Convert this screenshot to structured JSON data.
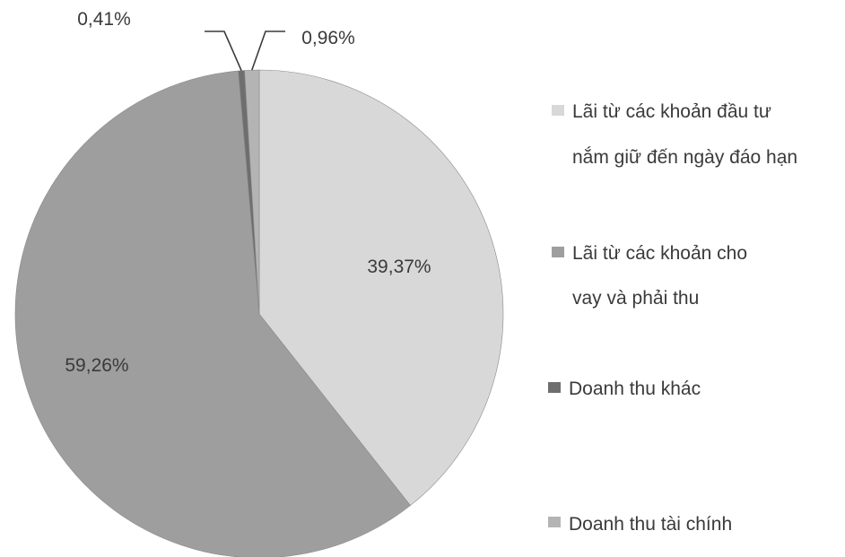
{
  "chart_data": {
    "type": "pie",
    "title": "",
    "categories": [
      "Lãi từ các khoản đầu tư nắm giữ đến ngày đáo  hạn",
      "Lãi từ các khoản cho vay và phải thu",
      "Doanh thu khác",
      "Doanh thu tài chính"
    ],
    "values": [
      39.37,
      59.26,
      0.41,
      0.96
    ],
    "value_labels": [
      "39,37%",
      "59,26%",
      "0,41%",
      "0,96%"
    ],
    "colors": [
      "#d8d8d8",
      "#9e9e9e",
      "#6e6e6e",
      "#b4b4b4"
    ],
    "legend_position": "right",
    "legend": [
      {
        "lines": [
          "Lãi từ các khoản đầu tư",
          "nắm giữ đến ngày đáo  hạn"
        ],
        "color": "#d8d8d8"
      },
      {
        "lines": [
          "Lãi từ các khoản cho",
          "vay và phải thu"
        ],
        "color": "#9e9e9e"
      },
      {
        "lines": [
          "Doanh thu khác"
        ],
        "color": "#6e6e6e"
      },
      {
        "lines": [
          "Doanh thu tài chính"
        ],
        "color": "#b4b4b4"
      }
    ]
  }
}
